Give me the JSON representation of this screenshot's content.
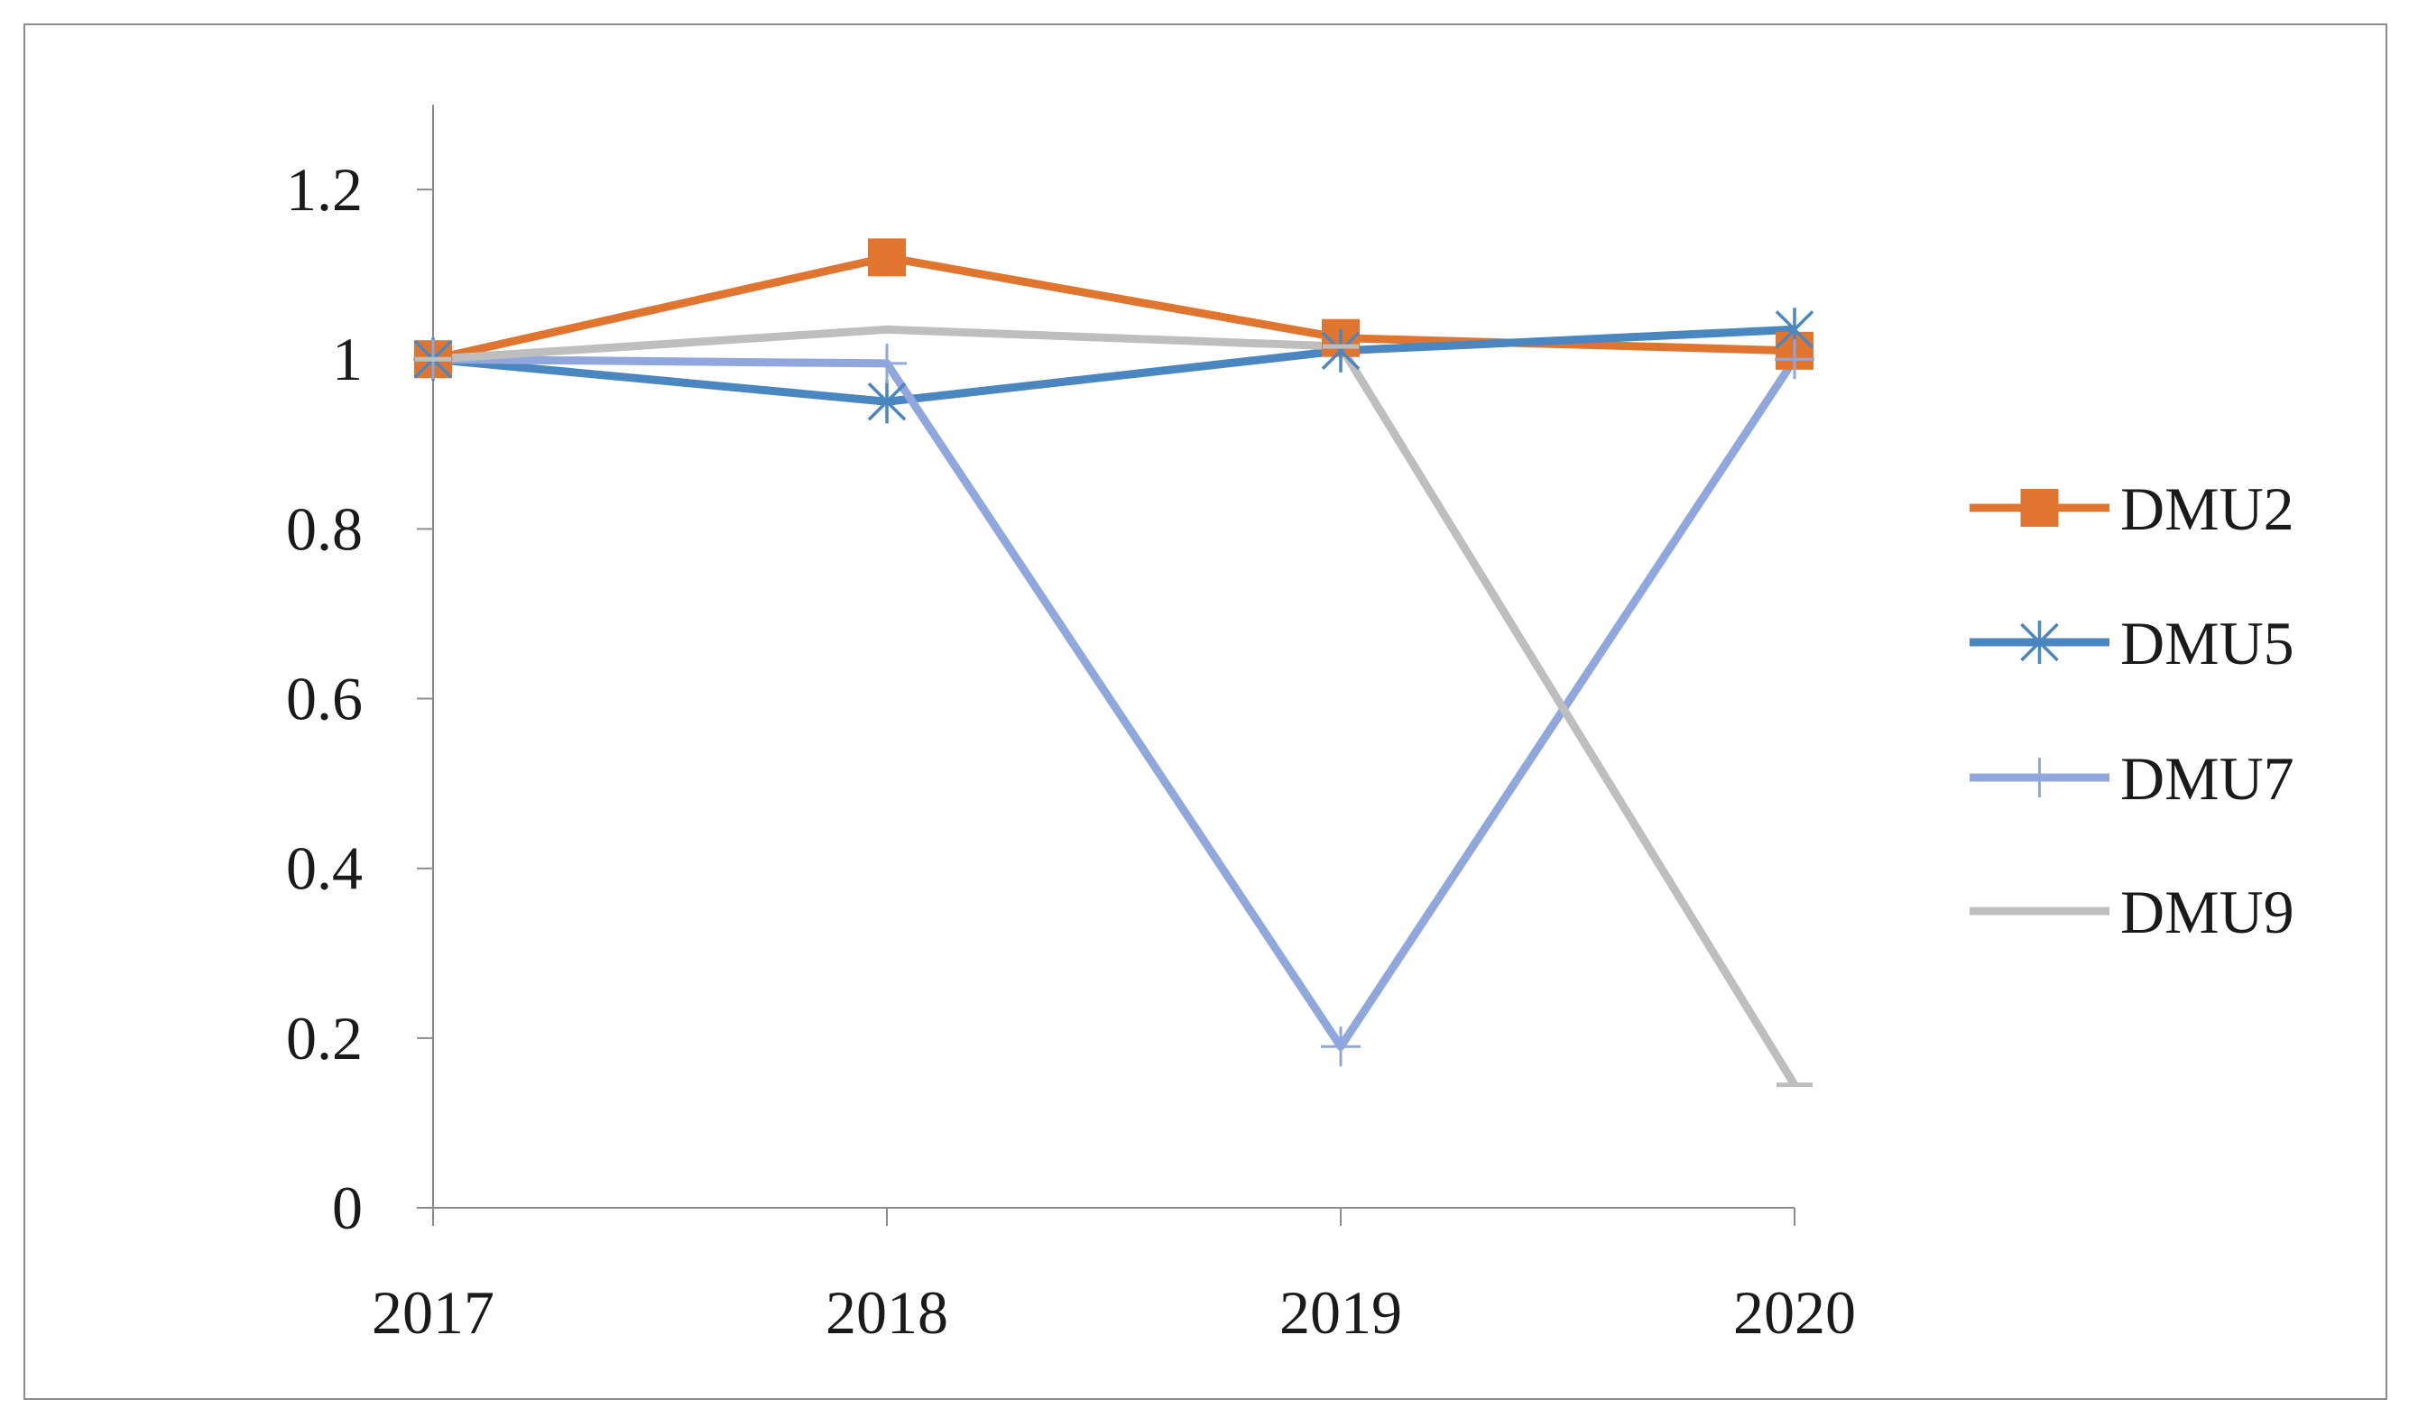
{
  "chart_data": {
    "type": "line",
    "title": "",
    "xlabel": "",
    "ylabel": "",
    "categories": [
      "2017",
      "2018",
      "2019",
      "2020"
    ],
    "ylim": [
      0,
      1.3
    ],
    "yticks": [
      0,
      0.2,
      0.4,
      0.6,
      0.8,
      1,
      1.2
    ],
    "ytick_labels": [
      "0",
      "0.2",
      "0.4",
      "0.6",
      "0.8",
      "1",
      "1.2"
    ],
    "grid": false,
    "legend_position": "right",
    "series": [
      {
        "name": "DMU2",
        "values": [
          1.0,
          1.12,
          1.025,
          1.01
        ],
        "color": "#e07530",
        "marker": "square"
      },
      {
        "name": "DMU5",
        "values": [
          1.0,
          0.95,
          1.01,
          1.035
        ],
        "color": "#4a86bf",
        "marker": "asterisk"
      },
      {
        "name": "DMU7",
        "values": [
          1.0,
          0.995,
          0.19,
          1.0
        ],
        "color": "#8fa7dc",
        "marker": "plus"
      },
      {
        "name": "DMU9",
        "values": [
          1.0,
          1.035,
          1.015,
          0.145
        ],
        "color": "#bebebe",
        "marker": "dash"
      }
    ]
  }
}
